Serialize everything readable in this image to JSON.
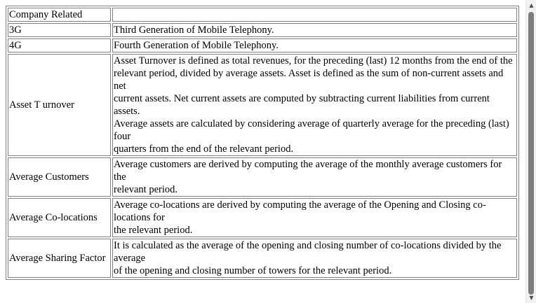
{
  "glossary": {
    "header": {
      "term": "Company Related",
      "definition": ""
    },
    "rows": [
      {
        "term": "3G",
        "lines": [
          "Third Generation of Mobile Telephony."
        ]
      },
      {
        "term": "4G",
        "lines": [
          "Fourth Generation of Mobile Telephony."
        ]
      },
      {
        "term": "Asset T urnover",
        "lines": [
          "Asset Turnover is defined as total revenues, for the preceding (last) 12 months from the end of the",
          "relevant period, divided by average assets. Asset is defined as the sum of non-current assets and net",
          "current assets. Net current assets are computed by subtracting current liabilities from current assets.",
          "Average assets are calculated by considering average of quarterly average for the preceding (last) four",
          "quarters from the end of the relevant period."
        ]
      },
      {
        "term": "Average Customers",
        "lines": [
          "Average customers are derived by computing the average of the monthly average customers for the",
          "relevant period."
        ]
      },
      {
        "term": "Average Co-locations",
        "lines": [
          "Average co-locations are derived by computing the average of the Opening and Closing co-locations for",
          "the relevant period."
        ]
      },
      {
        "term": "Average Sharing Factor",
        "lines": [
          "It is calculated as the average of the opening and closing number of co-locations divided by the average",
          "of the opening and closing number of towers for the relevant period."
        ]
      }
    ]
  }
}
